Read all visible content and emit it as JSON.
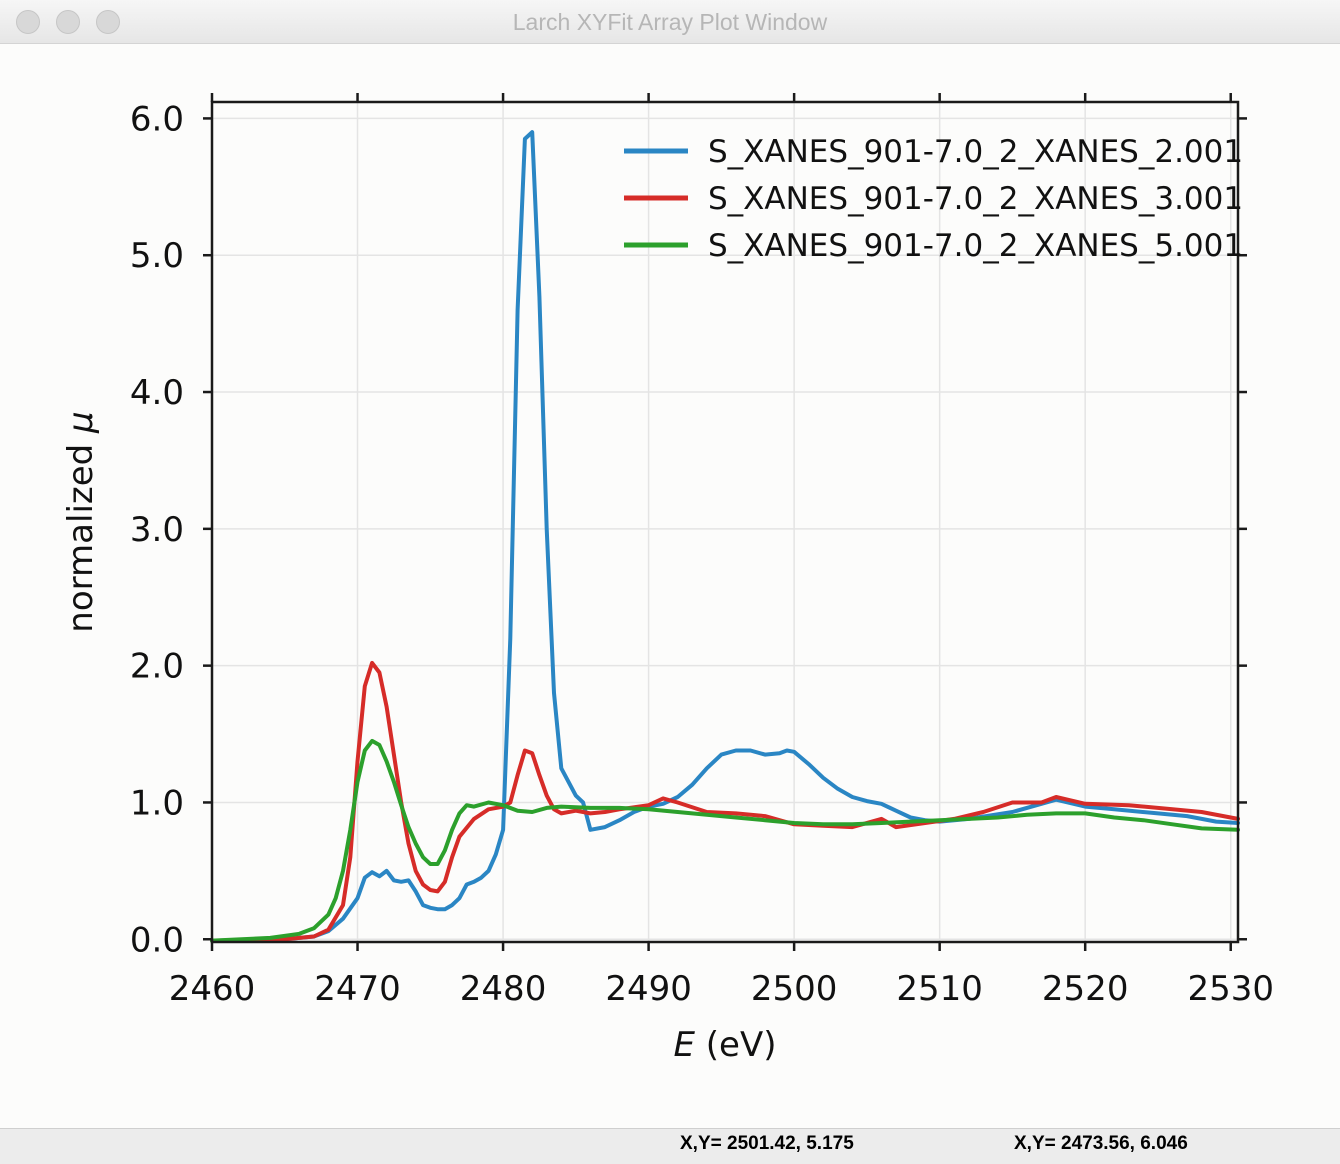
{
  "window": {
    "title": "Larch XYFit Array Plot Window"
  },
  "status": {
    "left": "X,Y= 2501.42, 5.175",
    "right": "X,Y= 2473.56, 6.046"
  },
  "chart_data": {
    "type": "line",
    "title": "",
    "xlabel_italic": "E",
    "xlabel_rest": " (eV)",
    "ylabel_text": "normalized ",
    "ylabel_italic": "μ",
    "xlim": [
      2460,
      2530.5
    ],
    "ylim": [
      -0.02,
      6.12
    ],
    "xticks": [
      2460,
      2470,
      2480,
      2490,
      2500,
      2510,
      2520,
      2530
    ],
    "xtick_labels": [
      "2460",
      "2470",
      "2480",
      "2490",
      "2500",
      "2510",
      "2520",
      "2530"
    ],
    "yticks": [
      0,
      1,
      2,
      3,
      4,
      5,
      6
    ],
    "ytick_labels": [
      "0.0",
      "1.0",
      "2.0",
      "3.0",
      "4.0",
      "5.0",
      "6.0"
    ],
    "grid": true,
    "legend_position": "top-right",
    "series": [
      {
        "name": "S_XANES_901-7.0_2_XANES_2.001",
        "color": "#2a86c4",
        "x": [
          2460,
          2465,
          2467,
          2468,
          2469,
          2470,
          2470.5,
          2471,
          2471.5,
          2472,
          2472.5,
          2473,
          2473.5,
          2474,
          2474.5,
          2475,
          2475.5,
          2476,
          2476.5,
          2477,
          2477.5,
          2478,
          2478.5,
          2479,
          2479.5,
          2480,
          2480.5,
          2481,
          2481.5,
          2482,
          2482.5,
          2483,
          2483.5,
          2484,
          2485,
          2485.5,
          2486,
          2487,
          2488,
          2489,
          2490,
          2491,
          2492,
          2493,
          2494,
          2495,
          2496,
          2497,
          2498,
          2499,
          2499.5,
          2500,
          2501,
          2502,
          2503,
          2504,
          2505,
          2506,
          2507,
          2508,
          2509,
          2510,
          2512,
          2515,
          2518,
          2520,
          2522,
          2525,
          2527,
          2529,
          2530.5
        ],
        "y": [
          -0.01,
          0,
          0.02,
          0.06,
          0.15,
          0.3,
          0.45,
          0.49,
          0.46,
          0.5,
          0.43,
          0.42,
          0.43,
          0.35,
          0.25,
          0.23,
          0.22,
          0.22,
          0.25,
          0.3,
          0.4,
          0.42,
          0.45,
          0.5,
          0.62,
          0.8,
          2.2,
          4.6,
          5.85,
          5.9,
          4.7,
          3.0,
          1.8,
          1.25,
          1.05,
          1.0,
          0.8,
          0.82,
          0.87,
          0.93,
          0.97,
          0.99,
          1.04,
          1.13,
          1.25,
          1.35,
          1.38,
          1.38,
          1.35,
          1.36,
          1.38,
          1.37,
          1.28,
          1.18,
          1.1,
          1.04,
          1.01,
          0.99,
          0.94,
          0.89,
          0.87,
          0.86,
          0.88,
          0.93,
          1.02,
          0.97,
          0.95,
          0.92,
          0.9,
          0.86,
          0.85
        ]
      },
      {
        "name": "S_XANES_901-7.0_2_XANES_3.001",
        "color": "#d62c28",
        "x": [
          2460,
          2465,
          2467,
          2468,
          2469,
          2469.5,
          2470,
          2470.5,
          2471,
          2471.5,
          2472,
          2472.5,
          2473,
          2473.5,
          2474,
          2474.5,
          2475,
          2475.5,
          2476,
          2476.5,
          2477,
          2478,
          2479,
          2480,
          2480.5,
          2481,
          2481.5,
          2482,
          2482.5,
          2483,
          2483.5,
          2484,
          2485,
          2486,
          2487,
          2488,
          2490,
          2491,
          2492,
          2494,
          2496,
          2498,
          2500,
          2502,
          2504,
          2506,
          2507,
          2509,
          2511,
          2513,
          2515,
          2517,
          2518,
          2520,
          2523,
          2526,
          2528,
          2530.5
        ],
        "y": [
          -0.01,
          0,
          0.02,
          0.07,
          0.25,
          0.6,
          1.3,
          1.85,
          2.02,
          1.95,
          1.7,
          1.35,
          1.0,
          0.7,
          0.5,
          0.4,
          0.36,
          0.35,
          0.42,
          0.6,
          0.75,
          0.88,
          0.95,
          0.97,
          1.0,
          1.2,
          1.38,
          1.36,
          1.2,
          1.05,
          0.95,
          0.92,
          0.94,
          0.92,
          0.93,
          0.95,
          0.98,
          1.03,
          1.0,
          0.93,
          0.92,
          0.9,
          0.84,
          0.83,
          0.82,
          0.88,
          0.82,
          0.85,
          0.88,
          0.93,
          1.0,
          1.0,
          1.04,
          0.99,
          0.98,
          0.95,
          0.93,
          0.88
        ]
      },
      {
        "name": "S_XANES_901-7.0_2_XANES_5.001",
        "color": "#2ca02c",
        "x": [
          2460,
          2464,
          2466,
          2467,
          2468,
          2468.5,
          2469,
          2469.5,
          2470,
          2470.5,
          2471,
          2471.5,
          2472,
          2472.5,
          2473,
          2473.5,
          2474,
          2474.5,
          2475,
          2475.5,
          2476,
          2476.5,
          2477,
          2477.5,
          2478,
          2479,
          2480,
          2481,
          2482,
          2483,
          2484,
          2486,
          2488,
          2490,
          2492,
          2494,
          2496,
          2498,
          2500,
          2502,
          2504,
          2506,
          2508,
          2510,
          2512,
          2514,
          2516,
          2518,
          2520,
          2522,
          2524,
          2526,
          2528,
          2530.5
        ],
        "y": [
          -0.01,
          0.01,
          0.04,
          0.08,
          0.18,
          0.3,
          0.5,
          0.8,
          1.15,
          1.38,
          1.45,
          1.42,
          1.3,
          1.15,
          0.98,
          0.82,
          0.7,
          0.6,
          0.55,
          0.55,
          0.65,
          0.8,
          0.92,
          0.98,
          0.97,
          1.0,
          0.98,
          0.94,
          0.93,
          0.96,
          0.97,
          0.96,
          0.96,
          0.95,
          0.93,
          0.91,
          0.89,
          0.87,
          0.85,
          0.84,
          0.84,
          0.85,
          0.86,
          0.87,
          0.88,
          0.89,
          0.91,
          0.92,
          0.92,
          0.89,
          0.87,
          0.84,
          0.81,
          0.8
        ]
      }
    ]
  }
}
